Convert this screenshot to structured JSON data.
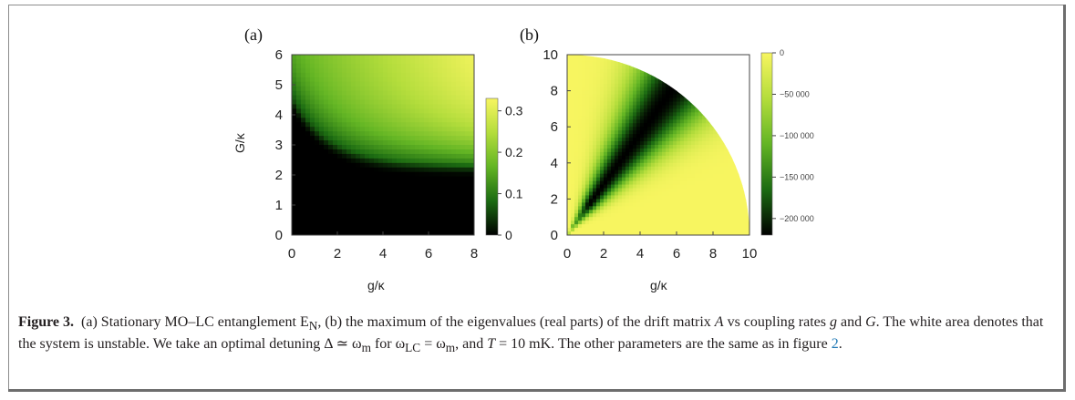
{
  "panels": [
    {
      "label": "(a)",
      "xlabel": "g/κ",
      "ylabel": "G/κ",
      "xticks": [
        "0",
        "2",
        "4",
        "6",
        "8"
      ],
      "yticks": [
        "0",
        "1",
        "2",
        "3",
        "4",
        "5",
        "6"
      ],
      "colorbar_ticks": [
        "0",
        "0.1",
        "0.2",
        "0.3"
      ]
    },
    {
      "label": "(b)",
      "xlabel": "g/κ",
      "yticks": [
        "0",
        "2",
        "4",
        "6",
        "8",
        "10"
      ],
      "xticks": [
        "0",
        "2",
        "4",
        "6",
        "8",
        "10"
      ],
      "colorbar_ticks": [
        "0",
        "−50 000",
        "−100 000",
        "−150 000",
        "−200 000"
      ]
    }
  ],
  "caption": {
    "title": "Figure 3.",
    "text_1": "(a) Stationary MO–LC entanglement E",
    "text_1_sub": "N",
    "text_2": ", (b) the maximum of the eigenvalues (real parts) of the drift matrix",
    "text_A": "A",
    "text_3": "vs coupling rates",
    "text_g": "g",
    "text_and": "and",
    "text_G": "G",
    "text_4": ". The white area denotes that the system is unstable. We take an optimal detuning Δ ≃ ω",
    "text_4_sub": "m",
    "text_5": "for ω",
    "text_5_sub": "LC",
    "text_6": "= ω",
    "text_6_sub": "m",
    "text_7": ",",
    "text_T": "T",
    "text_8": "= 10 mK. The other parameters are the same as in figure",
    "link": "2",
    "text_end": "."
  },
  "colors": {
    "colormap": [
      "#000000",
      "#1c6b12",
      "#63b524",
      "#b4dd3c",
      "#f7f560"
    ],
    "link": "#1f77b4",
    "frame": "#8c8c8c"
  },
  "chart_data": [
    {
      "type": "heatmap",
      "title": "(a)",
      "xlabel": "g/κ",
      "ylabel": "G/κ",
      "xlim": [
        0,
        8
      ],
      "ylim": [
        0,
        6
      ],
      "zlim": [
        0,
        0.33
      ],
      "colorbar_ticks": [
        0,
        0.1,
        0.2,
        0.3
      ],
      "description_values": "E_N near 0 for small g and small G; rises to about 0.33 at g≈8, G≈6"
    },
    {
      "type": "heatmap",
      "title": "(b)",
      "xlabel": "g/κ",
      "xlim": [
        0,
        10
      ],
      "ylim": [
        0,
        10
      ],
      "zlim": [
        -220000,
        0
      ],
      "colorbar_ticks": [
        0,
        -50000,
        -100000,
        -150000,
        -200000
      ],
      "unstable_region": "outside quarter circle of radius 10",
      "minimum_along": "diagonal G ≈ 1.4 g"
    }
  ]
}
